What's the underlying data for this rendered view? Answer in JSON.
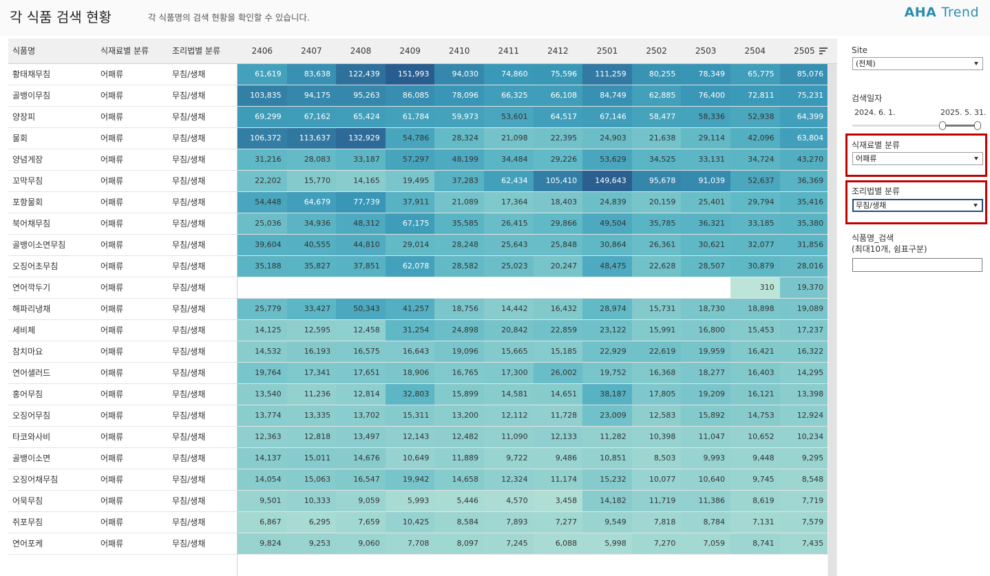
{
  "header": {
    "title": "각 식품 검색 현황",
    "subtitle": "각 식품명의 검색 현황을 확인할 수 있습니다.",
    "brand_main": "AHA",
    "brand_sub": "Trend"
  },
  "table": {
    "columns": [
      "식품명",
      "식재료별 분류",
      "조리법별 분류"
    ],
    "months": [
      "2406",
      "2407",
      "2408",
      "2409",
      "2410",
      "2411",
      "2412",
      "2501",
      "2502",
      "2503",
      "2504",
      "2505"
    ],
    "rows": [
      {
        "name": "황태채무침",
        "cat": "어패류",
        "method": "무침/생채",
        "values": [
          "61,619",
          "83,638",
          "122,439",
          "151,993",
          "94,030",
          "74,860",
          "75,596",
          "111,259",
          "80,255",
          "78,349",
          "65,775",
          "85,076"
        ]
      },
      {
        "name": "골뱅이무침",
        "cat": "어패류",
        "method": "무침/생채",
        "values": [
          "103,835",
          "94,175",
          "95,263",
          "86,085",
          "78,096",
          "66,325",
          "66,108",
          "84,749",
          "62,885",
          "76,400",
          "72,811",
          "75,231"
        ]
      },
      {
        "name": "양장피",
        "cat": "어패류",
        "method": "무침/생채",
        "values": [
          "69,299",
          "67,162",
          "65,424",
          "61,784",
          "59,973",
          "53,601",
          "64,517",
          "67,146",
          "58,477",
          "58,336",
          "52,938",
          "64,399"
        ]
      },
      {
        "name": "물회",
        "cat": "어패류",
        "method": "무침/생채",
        "values": [
          "106,372",
          "113,637",
          "132,929",
          "54,786",
          "28,324",
          "21,098",
          "22,395",
          "24,903",
          "21,638",
          "29,114",
          "42,096",
          "63,804"
        ]
      },
      {
        "name": "양념게장",
        "cat": "어패류",
        "method": "무침/생채",
        "values": [
          "31,216",
          "28,083",
          "33,187",
          "57,297",
          "48,199",
          "34,484",
          "29,226",
          "53,629",
          "34,525",
          "33,131",
          "34,724",
          "43,270"
        ]
      },
      {
        "name": "꼬막무침",
        "cat": "어패류",
        "method": "무침/생채",
        "values": [
          "22,202",
          "15,770",
          "14,165",
          "19,495",
          "37,283",
          "62,434",
          "105,410",
          "149,643",
          "95,678",
          "91,039",
          "52,637",
          "36,369"
        ]
      },
      {
        "name": "포항물회",
        "cat": "어패류",
        "method": "무침/생채",
        "values": [
          "54,448",
          "64,679",
          "77,739",
          "37,911",
          "21,089",
          "17,364",
          "18,403",
          "24,839",
          "20,159",
          "25,401",
          "29,794",
          "35,416"
        ]
      },
      {
        "name": "북어채무침",
        "cat": "어패류",
        "method": "무침/생채",
        "values": [
          "25,036",
          "34,936",
          "48,312",
          "67,175",
          "35,585",
          "26,415",
          "29,866",
          "49,504",
          "35,785",
          "36,321",
          "33,185",
          "35,380"
        ]
      },
      {
        "name": "골뱅이소면무침",
        "cat": "어패류",
        "method": "무침/생채",
        "values": [
          "39,604",
          "40,555",
          "44,810",
          "29,014",
          "28,248",
          "25,643",
          "25,848",
          "30,864",
          "26,361",
          "30,621",
          "32,077",
          "31,856"
        ]
      },
      {
        "name": "오징어초무침",
        "cat": "어패류",
        "method": "무침/생채",
        "values": [
          "35,188",
          "35,827",
          "37,851",
          "62,078",
          "28,582",
          "25,023",
          "20,247",
          "48,475",
          "22,628",
          "28,507",
          "30,879",
          "28,016"
        ]
      },
      {
        "name": "연어깍두기",
        "cat": "어패류",
        "method": "무침/생채",
        "values": [
          "",
          "",
          "",
          "",
          "",
          "",
          "",
          "",
          "",
          "",
          "310",
          "19,370"
        ]
      },
      {
        "name": "해파리냉채",
        "cat": "어패류",
        "method": "무침/생채",
        "values": [
          "25,779",
          "33,427",
          "50,343",
          "41,257",
          "18,756",
          "14,442",
          "16,432",
          "28,974",
          "15,731",
          "18,730",
          "18,898",
          "19,089"
        ]
      },
      {
        "name": "세비체",
        "cat": "어패류",
        "method": "무침/생채",
        "values": [
          "14,125",
          "12,595",
          "12,458",
          "31,254",
          "24,898",
          "20,842",
          "22,859",
          "23,122",
          "15,991",
          "16,800",
          "15,453",
          "17,237"
        ]
      },
      {
        "name": "참치마요",
        "cat": "어패류",
        "method": "무침/생채",
        "values": [
          "14,532",
          "16,193",
          "16,575",
          "16,643",
          "19,096",
          "15,665",
          "15,185",
          "22,929",
          "22,619",
          "19,959",
          "16,421",
          "16,322"
        ]
      },
      {
        "name": "연어샐러드",
        "cat": "어패류",
        "method": "무침/생채",
        "values": [
          "19,764",
          "17,341",
          "17,651",
          "18,906",
          "16,765",
          "17,300",
          "26,002",
          "19,752",
          "16,368",
          "18,277",
          "16,403",
          "14,295"
        ]
      },
      {
        "name": "홍어무침",
        "cat": "어패류",
        "method": "무침/생채",
        "values": [
          "13,540",
          "11,236",
          "12,814",
          "32,803",
          "15,899",
          "14,581",
          "14,651",
          "38,187",
          "17,805",
          "19,209",
          "16,121",
          "13,398"
        ]
      },
      {
        "name": "오징어무침",
        "cat": "어패류",
        "method": "무침/생채",
        "values": [
          "13,774",
          "13,335",
          "13,702",
          "15,311",
          "13,200",
          "12,112",
          "11,728",
          "23,009",
          "12,583",
          "15,892",
          "14,753",
          "12,924"
        ]
      },
      {
        "name": "타코와사비",
        "cat": "어패류",
        "method": "무침/생채",
        "values": [
          "12,363",
          "12,818",
          "13,497",
          "12,143",
          "12,482",
          "11,090",
          "12,133",
          "11,282",
          "10,398",
          "11,047",
          "10,652",
          "10,234"
        ]
      },
      {
        "name": "골뱅이소면",
        "cat": "어패류",
        "method": "무침/생채",
        "values": [
          "14,137",
          "15,011",
          "14,676",
          "10,649",
          "11,889",
          "9,722",
          "9,486",
          "10,851",
          "8,503",
          "9,993",
          "9,448",
          "9,295"
        ]
      },
      {
        "name": "오징어채무침",
        "cat": "어패류",
        "method": "무침/생채",
        "values": [
          "14,054",
          "15,063",
          "16,547",
          "19,942",
          "14,658",
          "12,324",
          "11,174",
          "15,232",
          "10,077",
          "10,640",
          "9,745",
          "8,548"
        ]
      },
      {
        "name": "어묵무침",
        "cat": "어패류",
        "method": "무침/생채",
        "values": [
          "9,501",
          "10,333",
          "9,059",
          "5,993",
          "5,446",
          "4,570",
          "3,458",
          "14,182",
          "11,719",
          "11,386",
          "8,619",
          "7,719"
        ]
      },
      {
        "name": "쥐포무침",
        "cat": "어패류",
        "method": "무침/생채",
        "values": [
          "6,867",
          "6,295",
          "7,659",
          "10,425",
          "8,584",
          "7,893",
          "7,277",
          "9,549",
          "7,818",
          "8,784",
          "7,131",
          "7,579"
        ]
      },
      {
        "name": "연어포케",
        "cat": "어패류",
        "method": "무침/생채",
        "values": [
          "9,824",
          "9,253",
          "9,060",
          "7,708",
          "8,097",
          "7,245",
          "6,088",
          "5,998",
          "7,270",
          "7,059",
          "8,741",
          "7,435"
        ]
      }
    ]
  },
  "filters": {
    "site_label": "Site",
    "site_value": "(전체)",
    "date_label": "검색일자",
    "date_start": "2024. 6. 1.",
    "date_end": "2025. 5. 31.",
    "ingredient_label": "식재료별 분류",
    "ingredient_value": "어패류",
    "method_label": "조리법별 분류",
    "method_value": "무침/생채",
    "search_label_line1": "식품명_검색",
    "search_label_line2": "(최대10개, 쉼표구분)",
    "search_value": ""
  },
  "colors": {
    "accent": "#2a8db0",
    "highlight": "#c00000",
    "heat_low": "#c3e6da",
    "heat_high": "#2a5d8f"
  }
}
